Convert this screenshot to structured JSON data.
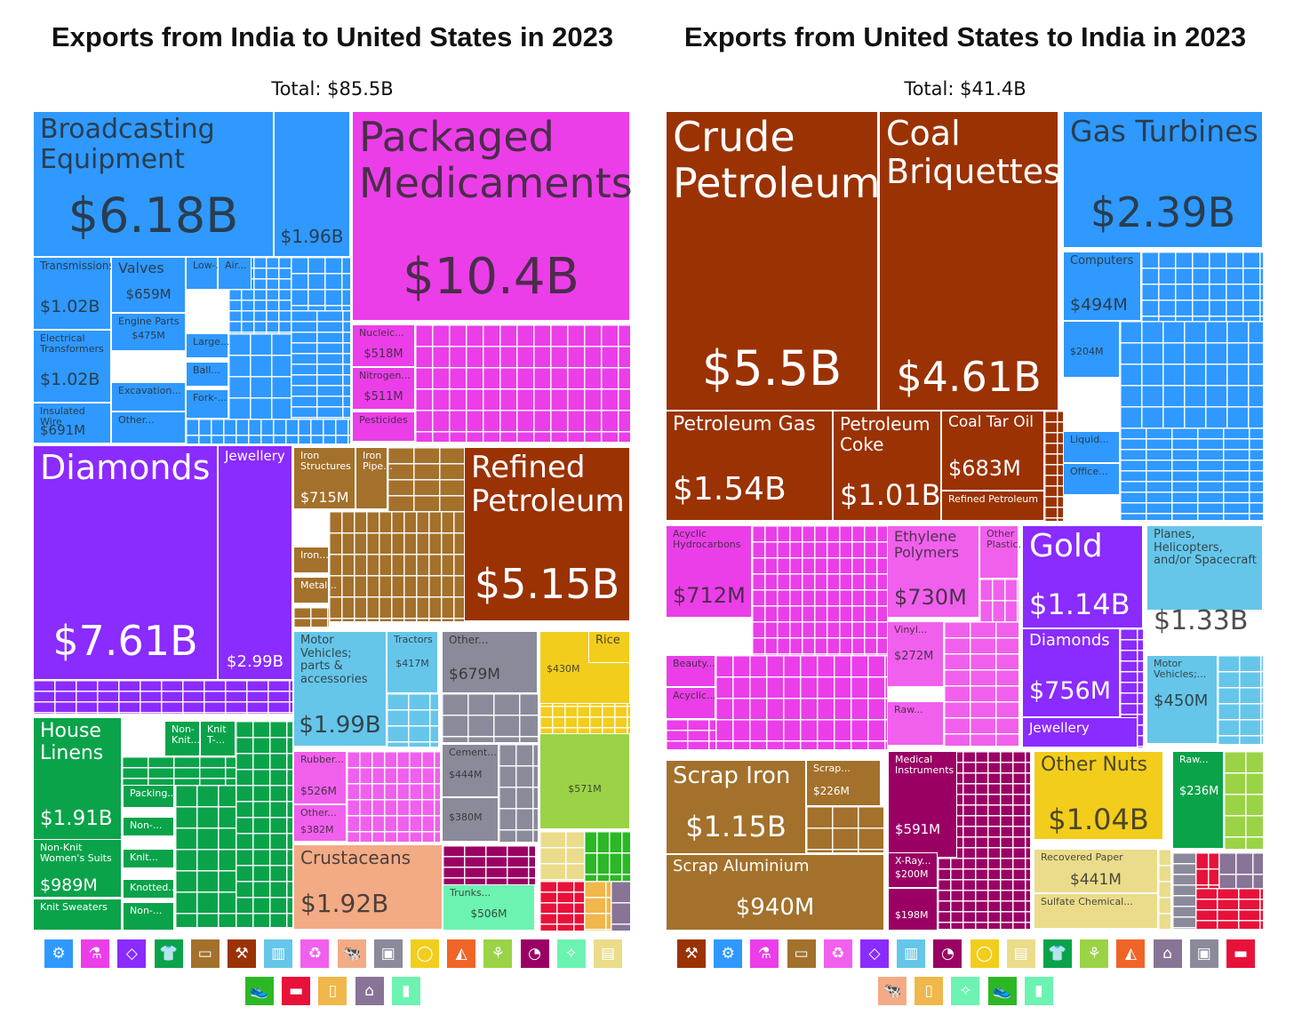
{
  "colors": {
    "machinery": "#2f99ff",
    "chemicals": "#eb3ee9",
    "precious": "#8a2bff",
    "minerals": "#9b3203",
    "textiles": "#0aa34a",
    "metals": "#a3712b",
    "transport": "#65c6ea",
    "stone": "#8b8a9b",
    "vegetable": "#f2cd1c",
    "plastics": "#f160ed",
    "animal": "#f3ab86",
    "instruments": "#9a0064",
    "food": "#9bd347",
    "paper": "#eadc8a",
    "footwear": "#2cb825",
    "misc": "#e8113a",
    "animal_hides": "#6cf3b1",
    "wood": "#f0b74a",
    "arts": "#887497"
  },
  "chart_data": [
    {
      "type": "treemap",
      "title": "Exports from India to United States in 2023",
      "total_label": "Total: $85.5B",
      "tiles": [
        {
          "name": "Broadcasting Equipment",
          "value": "$6.18B",
          "category": "machinery"
        },
        {
          "name": "",
          "value": "$1.96B",
          "category": "machinery"
        },
        {
          "name": "Transmissions",
          "value": "$1.02B",
          "category": "machinery"
        },
        {
          "name": "Valves",
          "value": "$659M",
          "category": "machinery"
        },
        {
          "name": "Low-...",
          "value": "",
          "category": "machinery"
        },
        {
          "name": "Air...",
          "value": "",
          "category": "machinery"
        },
        {
          "name": "Engine Parts",
          "value": "$475M",
          "category": "machinery"
        },
        {
          "name": "Electrical Transformers",
          "value": "$1.02B",
          "category": "machinery"
        },
        {
          "name": "Large...",
          "value": "",
          "category": "machinery"
        },
        {
          "name": "Ball...",
          "value": "",
          "category": "machinery"
        },
        {
          "name": "Excavation...",
          "value": "",
          "category": "machinery"
        },
        {
          "name": "Fork-...",
          "value": "",
          "category": "machinery"
        },
        {
          "name": "Insulated Wire",
          "value": "$691M",
          "category": "machinery"
        },
        {
          "name": "Other...",
          "value": "",
          "category": "machinery"
        },
        {
          "name": "Packaged Medicaments",
          "value": "$10.4B",
          "category": "chemicals"
        },
        {
          "name": "Nucleic...",
          "value": "$518M",
          "category": "chemicals"
        },
        {
          "name": "Nitrogen...",
          "value": "$511M",
          "category": "chemicals"
        },
        {
          "name": "Pesticides",
          "value": "",
          "category": "chemicals"
        },
        {
          "name": "Diamonds",
          "value": "$7.61B",
          "category": "precious"
        },
        {
          "name": "Jewellery",
          "value": "$2.99B",
          "category": "precious"
        },
        {
          "name": "Iron Structures",
          "value": "$715M",
          "category": "metals"
        },
        {
          "name": "Iron Pipe...",
          "value": "",
          "category": "metals"
        },
        {
          "name": "Iron...",
          "value": "",
          "category": "metals"
        },
        {
          "name": "Metal...",
          "value": "",
          "category": "metals"
        },
        {
          "name": "Refined Petroleum",
          "value": "$5.15B",
          "category": "minerals"
        },
        {
          "name": "Motor Vehicles; parts & accessories",
          "value": "$1.99B",
          "category": "transport"
        },
        {
          "name": "Tractors",
          "value": "$417M",
          "category": "transport"
        },
        {
          "name": "Other...",
          "value": "$679M",
          "category": "stone"
        },
        {
          "name": "",
          "value": "$430M",
          "category": "vegetable"
        },
        {
          "name": "Rice",
          "value": "",
          "category": "vegetable"
        },
        {
          "name": "House Linens",
          "value": "$1.91B",
          "category": "textiles"
        },
        {
          "name": "Non-Knit...",
          "value": "",
          "category": "textiles"
        },
        {
          "name": "Knit T-...",
          "value": "",
          "category": "textiles"
        },
        {
          "name": "Packing...",
          "value": "",
          "category": "textiles"
        },
        {
          "name": "Non-...",
          "value": "",
          "category": "textiles"
        },
        {
          "name": "Knit...",
          "value": "",
          "category": "textiles"
        },
        {
          "name": "Knotted...",
          "value": "",
          "category": "textiles"
        },
        {
          "name": "Non-Knit Women's Suits",
          "value": "$989M",
          "category": "textiles"
        },
        {
          "name": "Knit Sweaters",
          "value": "",
          "category": "textiles"
        },
        {
          "name": "Non-...",
          "value": "",
          "category": "textiles"
        },
        {
          "name": "Rubber...",
          "value": "$526M",
          "category": "plastics"
        },
        {
          "name": "Other...",
          "value": "$382M",
          "category": "plastics"
        },
        {
          "name": "Cement...",
          "value": "$444M",
          "category": "stone"
        },
        {
          "name": "",
          "value": "$380M",
          "category": "stone"
        },
        {
          "name": "",
          "value": "$571M",
          "category": "food"
        },
        {
          "name": "Crustaceans",
          "value": "$1.92B",
          "category": "animal"
        },
        {
          "name": "Trunks...",
          "value": "$506M",
          "category": "animal_hides"
        }
      ]
    },
    {
      "type": "treemap",
      "title": "Exports from United States to India in 2023",
      "total_label": "Total: $41.4B",
      "tiles": [
        {
          "name": "Crude Petroleum",
          "value": "$5.5B",
          "category": "minerals"
        },
        {
          "name": "Coal Briquettes",
          "value": "$4.61B",
          "category": "minerals"
        },
        {
          "name": "Gas Turbines",
          "value": "$2.39B",
          "category": "machinery"
        },
        {
          "name": "Computers",
          "value": "$494M",
          "category": "machinery"
        },
        {
          "name": "",
          "value": "$204M",
          "category": "machinery"
        },
        {
          "name": "Liquid...",
          "value": "",
          "category": "machinery"
        },
        {
          "name": "Office...",
          "value": "",
          "category": "machinery"
        },
        {
          "name": "Petroleum Gas",
          "value": "$1.54B",
          "category": "minerals"
        },
        {
          "name": "Petroleum Coke",
          "value": "$1.01B",
          "category": "minerals"
        },
        {
          "name": "Coal Tar Oil",
          "value": "$683M",
          "category": "minerals"
        },
        {
          "name": "Refined Petroleum",
          "value": "",
          "category": "minerals"
        },
        {
          "name": "Acyclic Hydrocarbons",
          "value": "$712M",
          "category": "chemicals"
        },
        {
          "name": "Beauty...",
          "value": "",
          "category": "chemicals"
        },
        {
          "name": "Acyclic...",
          "value": "",
          "category": "chemicals"
        },
        {
          "name": "Ethylene Polymers",
          "value": "$730M",
          "category": "plastics"
        },
        {
          "name": "Other Plastic...",
          "value": "",
          "category": "plastics"
        },
        {
          "name": "Vinyl...",
          "value": "$272M",
          "category": "plastics"
        },
        {
          "name": "Raw...",
          "value": "",
          "category": "plastics"
        },
        {
          "name": "Gold",
          "value": "$1.14B",
          "category": "precious"
        },
        {
          "name": "Diamonds",
          "value": "$756M",
          "category": "precious"
        },
        {
          "name": "Jewellery",
          "value": "",
          "category": "precious"
        },
        {
          "name": "Planes, Helicopters, and/or Spacecraft",
          "value": "$1.33B",
          "category": "transport"
        },
        {
          "name": "Motor Vehicles;...",
          "value": "$450M",
          "category": "transport"
        },
        {
          "name": "Scrap Iron",
          "value": "$1.15B",
          "category": "metals"
        },
        {
          "name": "Scrap...",
          "value": "$226M",
          "category": "metals"
        },
        {
          "name": "Scrap Aluminium",
          "value": "$940M",
          "category": "metals"
        },
        {
          "name": "Medical Instruments",
          "value": "$591M",
          "category": "instruments"
        },
        {
          "name": "X-Ray...",
          "value": "$200M",
          "category": "instruments"
        },
        {
          "name": "",
          "value": "$198M",
          "category": "instruments"
        },
        {
          "name": "Other Nuts",
          "value": "$1.04B",
          "category": "vegetable"
        },
        {
          "name": "Recovered Paper",
          "value": "$441M",
          "category": "paper"
        },
        {
          "name": "Sulfate Chemical...",
          "value": "",
          "category": "paper"
        },
        {
          "name": "Raw...",
          "value": "$236M",
          "category": "textiles"
        }
      ]
    }
  ],
  "legend": {
    "left": [
      {
        "category": "machinery",
        "icon": "gear-icon",
        "glyph": "⚙"
      },
      {
        "category": "chemicals",
        "icon": "flask-icon",
        "glyph": "⚗"
      },
      {
        "category": "precious",
        "icon": "diamond-icon",
        "glyph": "◇"
      },
      {
        "category": "textiles",
        "icon": "shirt-icon",
        "glyph": "👕"
      },
      {
        "category": "metals",
        "icon": "anvil-icon",
        "glyph": "▭"
      },
      {
        "category": "minerals",
        "icon": "pickaxe-icon",
        "glyph": "⚒"
      },
      {
        "category": "transport",
        "icon": "road-icon",
        "glyph": "▥"
      },
      {
        "category": "plastics",
        "icon": "recycle-icon",
        "glyph": "♻"
      },
      {
        "category": "animal",
        "icon": "cow-icon",
        "glyph": "🐄"
      },
      {
        "category": "stone",
        "icon": "box-icon",
        "glyph": "▣"
      },
      {
        "category": "vegetable",
        "icon": "fruit-icon",
        "glyph": "◯"
      },
      {
        "category": "misc_food",
        "icon": "sandwich-icon",
        "glyph": "◭"
      },
      {
        "category": "food",
        "icon": "wheat-icon",
        "glyph": "⚘"
      },
      {
        "category": "instruments",
        "icon": "gauge-icon",
        "glyph": "◔"
      },
      {
        "category": "animal_hides",
        "icon": "hide-icon",
        "glyph": "✧"
      },
      {
        "category": "paper",
        "icon": "paper-icon",
        "glyph": "▤"
      },
      {
        "category": "footwear",
        "icon": "shoe-icon",
        "glyph": "👟"
      },
      {
        "category": "misc",
        "icon": "ticket-icon",
        "glyph": "▬"
      },
      {
        "category": "wood",
        "icon": "jar-icon",
        "glyph": "▯"
      },
      {
        "category": "arts",
        "icon": "easel-icon",
        "glyph": "⌂"
      },
      {
        "category": "animal_hides",
        "icon": "bullets-icon",
        "glyph": "▮"
      }
    ],
    "right": [
      {
        "category": "minerals",
        "icon": "pickaxe-icon",
        "glyph": "⚒"
      },
      {
        "category": "machinery",
        "icon": "gear-icon",
        "glyph": "⚙"
      },
      {
        "category": "chemicals",
        "icon": "flask-icon",
        "glyph": "⚗"
      },
      {
        "category": "metals",
        "icon": "anvil-icon",
        "glyph": "▭"
      },
      {
        "category": "plastics",
        "icon": "recycle-icon",
        "glyph": "♻"
      },
      {
        "category": "precious",
        "icon": "diamond-icon",
        "glyph": "◇"
      },
      {
        "category": "transport",
        "icon": "road-icon",
        "glyph": "▥"
      },
      {
        "category": "instruments",
        "icon": "gauge-icon",
        "glyph": "◔"
      },
      {
        "category": "vegetable",
        "icon": "fruit-icon",
        "glyph": "◯"
      },
      {
        "category": "paper",
        "icon": "paper-icon",
        "glyph": "▤"
      },
      {
        "category": "textiles",
        "icon": "shirt-icon",
        "glyph": "👕"
      },
      {
        "category": "food",
        "icon": "wheat-icon",
        "glyph": "⚘"
      },
      {
        "category": "misc_food",
        "icon": "sandwich-icon",
        "glyph": "◭"
      },
      {
        "category": "arts",
        "icon": "easel-icon",
        "glyph": "⌂"
      },
      {
        "category": "stone",
        "icon": "box-icon",
        "glyph": "▣"
      },
      {
        "category": "misc",
        "icon": "ticket-icon",
        "glyph": "▬"
      },
      {
        "category": "animal",
        "icon": "cow-icon",
        "glyph": "🐄"
      },
      {
        "category": "wood",
        "icon": "jar-icon",
        "glyph": "▯"
      },
      {
        "category": "animal_hides",
        "icon": "hide-icon",
        "glyph": "✧"
      },
      {
        "category": "footwear",
        "icon": "shoe-icon",
        "glyph": "👟"
      },
      {
        "category": "animal_hides",
        "icon": "bullets-icon",
        "glyph": "▮"
      }
    ]
  }
}
